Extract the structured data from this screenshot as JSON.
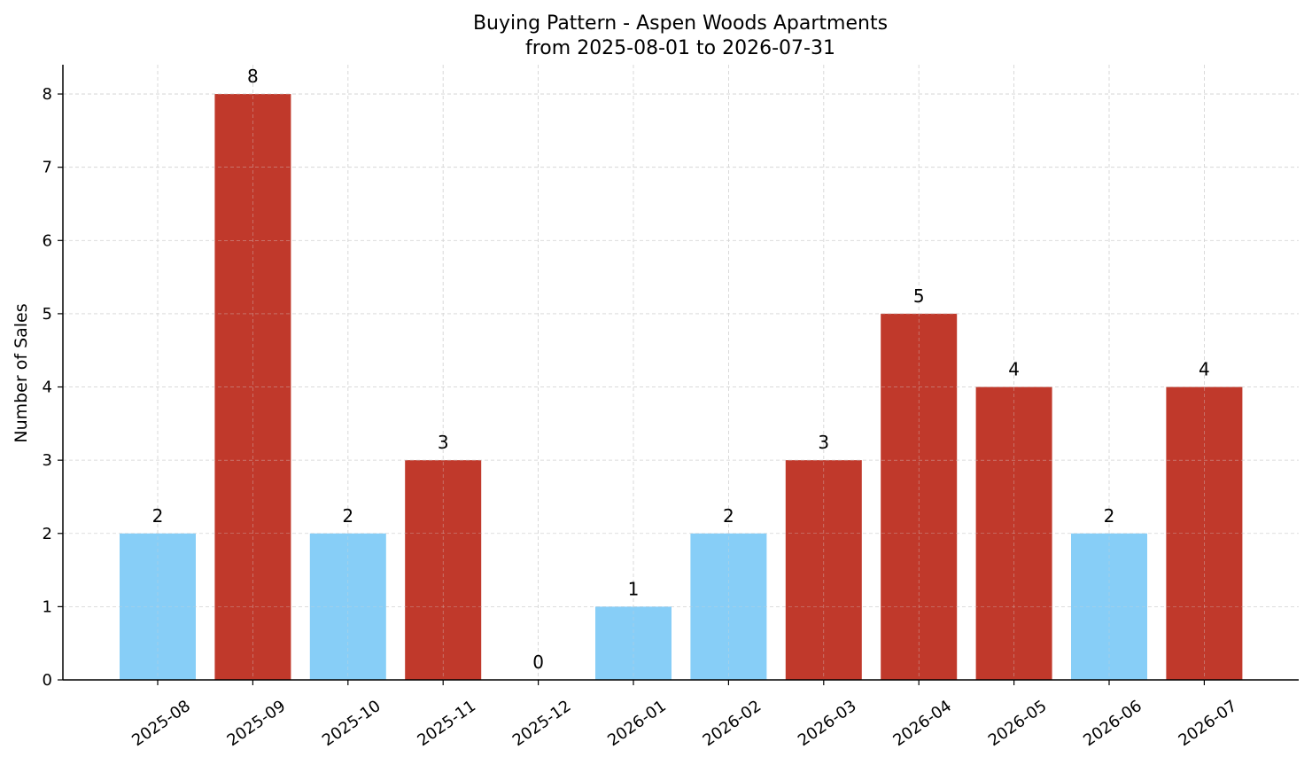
{
  "chart_data": {
    "type": "bar",
    "title": "Buying Pattern - Aspen Woods Apartments",
    "subtitle": "from 2025-08-01 to 2026-07-31",
    "xlabel": "",
    "ylabel": "Number of Sales",
    "categories": [
      "2025-08",
      "2025-09",
      "2025-10",
      "2025-11",
      "2025-12",
      "2026-01",
      "2026-02",
      "2026-03",
      "2026-04",
      "2026-05",
      "2026-06",
      "2026-07"
    ],
    "values": [
      2,
      8,
      2,
      3,
      0,
      1,
      2,
      3,
      5,
      4,
      2,
      4
    ],
    "ylim": [
      0,
      8.4
    ],
    "yticks": [
      0,
      1,
      2,
      3,
      4,
      5,
      6,
      7,
      8
    ],
    "grid": true,
    "legend": "none",
    "colors": {
      "low": "#87CEF7",
      "high": "#C0392B",
      "grid": "#d3d3d3",
      "axis": "#000000"
    },
    "bar_color_rule": "high when value >= 3"
  }
}
